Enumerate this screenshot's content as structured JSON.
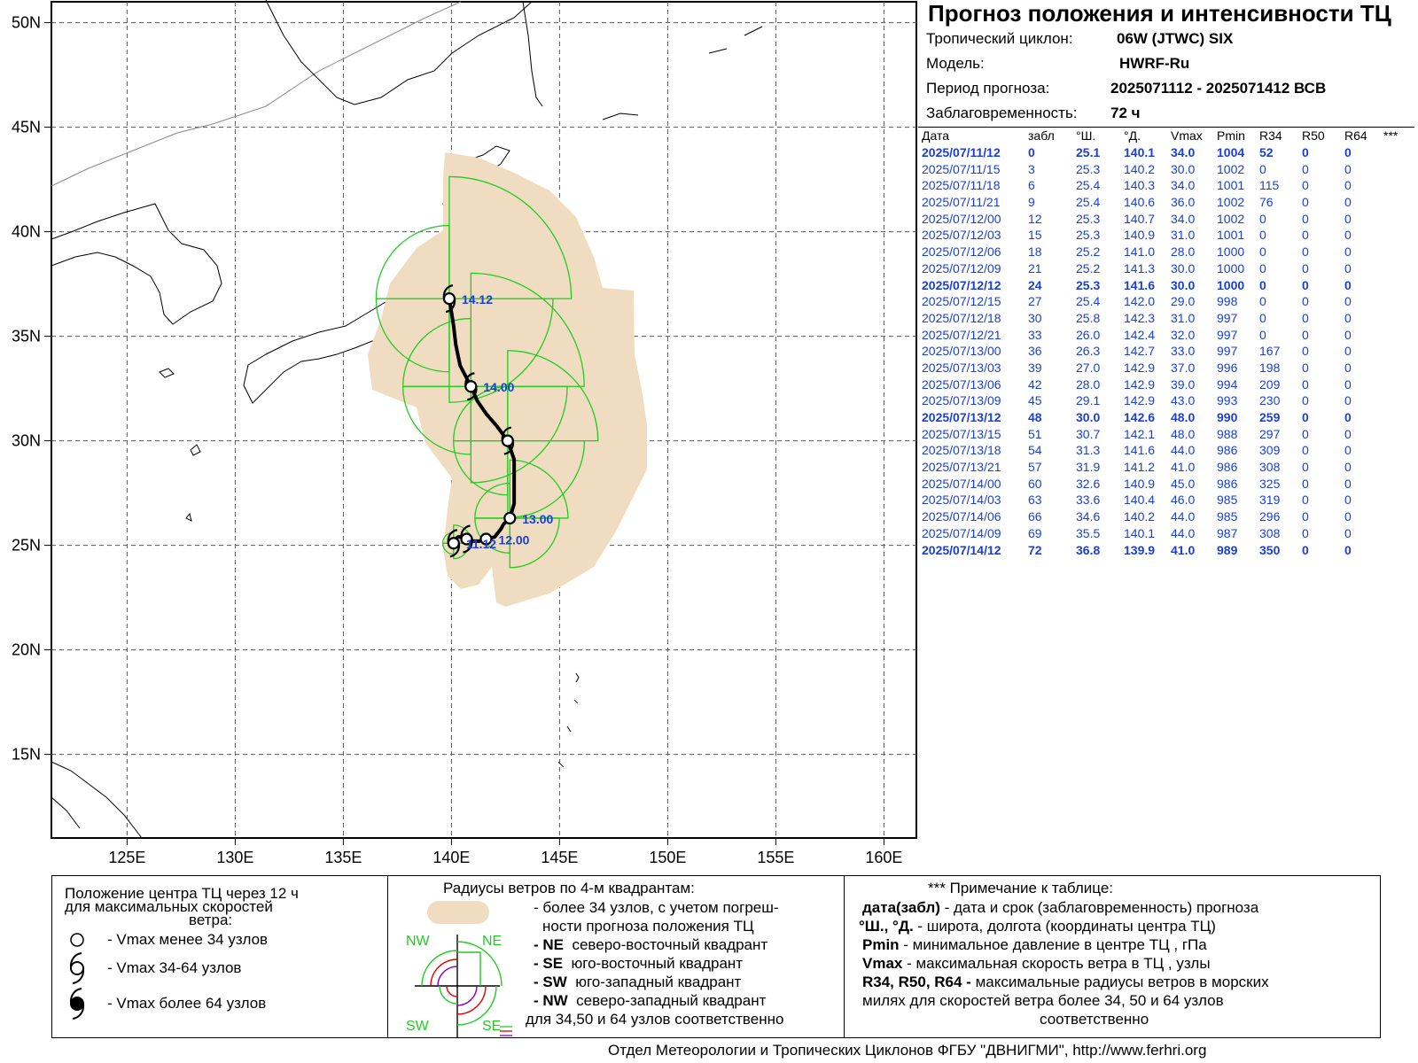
{
  "header": {
    "title": "Прогноз положения и интенсивности ТЦ",
    "cyclone_label": "Тропический циклон:",
    "cyclone_value": "06W (JTWC)  SIX",
    "model_label": "Модель:",
    "model_value": "HWRF-Ru",
    "period_label": "Период прогноза:",
    "period_value": "2025071112 - 2025071412 ВСВ",
    "lead_label": "Заблаговременность:",
    "lead_value": "72 ч"
  },
  "table": {
    "columns": [
      "Дата",
      "забл",
      "°Ш.",
      "°Д.",
      "Vmax",
      "Pmin",
      "R34",
      "R50",
      "R64",
      "***"
    ],
    "rows": [
      {
        "date": "2025/07/11/12",
        "lead": "0",
        "lat": "25.1",
        "lon": "140.1",
        "vmax": "34.0",
        "pmin": "1004",
        "r34": "52",
        "r50": "0",
        "r64": "0",
        "bold": true
      },
      {
        "date": "2025/07/11/15",
        "lead": "3",
        "lat": "25.3",
        "lon": "140.2",
        "vmax": "30.0",
        "pmin": "1002",
        "r34": "0",
        "r50": "0",
        "r64": "0",
        "bold": false
      },
      {
        "date": "2025/07/11/18",
        "lead": "6",
        "lat": "25.4",
        "lon": "140.3",
        "vmax": "34.0",
        "pmin": "1001",
        "r34": "115",
        "r50": "0",
        "r64": "0",
        "bold": false
      },
      {
        "date": "2025/07/11/21",
        "lead": "9",
        "lat": "25.4",
        "lon": "140.6",
        "vmax": "36.0",
        "pmin": "1002",
        "r34": "76",
        "r50": "0",
        "r64": "0",
        "bold": false
      },
      {
        "date": "2025/07/12/00",
        "lead": "12",
        "lat": "25.3",
        "lon": "140.7",
        "vmax": "34.0",
        "pmin": "1002",
        "r34": "0",
        "r50": "0",
        "r64": "0",
        "bold": false
      },
      {
        "date": "2025/07/12/03",
        "lead": "15",
        "lat": "25.3",
        "lon": "140.9",
        "vmax": "31.0",
        "pmin": "1001",
        "r34": "0",
        "r50": "0",
        "r64": "0",
        "bold": false
      },
      {
        "date": "2025/07/12/06",
        "lead": "18",
        "lat": "25.2",
        "lon": "141.0",
        "vmax": "28.0",
        "pmin": "1000",
        "r34": "0",
        "r50": "0",
        "r64": "0",
        "bold": false
      },
      {
        "date": "2025/07/12/09",
        "lead": "21",
        "lat": "25.2",
        "lon": "141.3",
        "vmax": "30.0",
        "pmin": "1000",
        "r34": "0",
        "r50": "0",
        "r64": "0",
        "bold": false
      },
      {
        "date": "2025/07/12/12",
        "lead": "24",
        "lat": "25.3",
        "lon": "141.6",
        "vmax": "30.0",
        "pmin": "1000",
        "r34": "0",
        "r50": "0",
        "r64": "0",
        "bold": true
      },
      {
        "date": "2025/07/12/15",
        "lead": "27",
        "lat": "25.4",
        "lon": "142.0",
        "vmax": "29.0",
        "pmin": "998",
        "r34": "0",
        "r50": "0",
        "r64": "0",
        "bold": false
      },
      {
        "date": "2025/07/12/18",
        "lead": "30",
        "lat": "25.8",
        "lon": "142.3",
        "vmax": "31.0",
        "pmin": "997",
        "r34": "0",
        "r50": "0",
        "r64": "0",
        "bold": false
      },
      {
        "date": "2025/07/12/21",
        "lead": "33",
        "lat": "26.0",
        "lon": "142.4",
        "vmax": "32.0",
        "pmin": "997",
        "r34": "0",
        "r50": "0",
        "r64": "0",
        "bold": false
      },
      {
        "date": "2025/07/13/00",
        "lead": "36",
        "lat": "26.3",
        "lon": "142.7",
        "vmax": "33.0",
        "pmin": "997",
        "r34": "167",
        "r50": "0",
        "r64": "0",
        "bold": false
      },
      {
        "date": "2025/07/13/03",
        "lead": "39",
        "lat": "27.0",
        "lon": "142.9",
        "vmax": "37.0",
        "pmin": "996",
        "r34": "198",
        "r50": "0",
        "r64": "0",
        "bold": false
      },
      {
        "date": "2025/07/13/06",
        "lead": "42",
        "lat": "28.0",
        "lon": "142.9",
        "vmax": "39.0",
        "pmin": "994",
        "r34": "209",
        "r50": "0",
        "r64": "0",
        "bold": false
      },
      {
        "date": "2025/07/13/09",
        "lead": "45",
        "lat": "29.1",
        "lon": "142.9",
        "vmax": "43.0",
        "pmin": "993",
        "r34": "230",
        "r50": "0",
        "r64": "0",
        "bold": false
      },
      {
        "date": "2025/07/13/12",
        "lead": "48",
        "lat": "30.0",
        "lon": "142.6",
        "vmax": "48.0",
        "pmin": "990",
        "r34": "259",
        "r50": "0",
        "r64": "0",
        "bold": true
      },
      {
        "date": "2025/07/13/15",
        "lead": "51",
        "lat": "30.7",
        "lon": "142.1",
        "vmax": "48.0",
        "pmin": "988",
        "r34": "297",
        "r50": "0",
        "r64": "0",
        "bold": false
      },
      {
        "date": "2025/07/13/18",
        "lead": "54",
        "lat": "31.3",
        "lon": "141.6",
        "vmax": "44.0",
        "pmin": "986",
        "r34": "309",
        "r50": "0",
        "r64": "0",
        "bold": false
      },
      {
        "date": "2025/07/13/21",
        "lead": "57",
        "lat": "31.9",
        "lon": "141.2",
        "vmax": "41.0",
        "pmin": "986",
        "r34": "308",
        "r50": "0",
        "r64": "0",
        "bold": false
      },
      {
        "date": "2025/07/14/00",
        "lead": "60",
        "lat": "32.6",
        "lon": "140.9",
        "vmax": "45.0",
        "pmin": "986",
        "r34": "325",
        "r50": "0",
        "r64": "0",
        "bold": false
      },
      {
        "date": "2025/07/14/03",
        "lead": "63",
        "lat": "33.6",
        "lon": "140.4",
        "vmax": "46.0",
        "pmin": "985",
        "r34": "319",
        "r50": "0",
        "r64": "0",
        "bold": false
      },
      {
        "date": "2025/07/14/06",
        "lead": "66",
        "lat": "34.6",
        "lon": "140.2",
        "vmax": "44.0",
        "pmin": "985",
        "r34": "296",
        "r50": "0",
        "r64": "0",
        "bold": false
      },
      {
        "date": "2025/07/14/09",
        "lead": "69",
        "lat": "35.5",
        "lon": "140.1",
        "vmax": "44.0",
        "pmin": "987",
        "r34": "308",
        "r50": "0",
        "r64": "0",
        "bold": false
      },
      {
        "date": "2025/07/14/12",
        "lead": "72",
        "lat": "36.8",
        "lon": "139.9",
        "vmax": "41.0",
        "pmin": "989",
        "r34": "350",
        "r50": "0",
        "r64": "0",
        "bold": true
      }
    ]
  },
  "map": {
    "lon_range": [
      121.5,
      161.5
    ],
    "lat_range": [
      11,
      51
    ],
    "lon_ticks": [
      {
        "v": 125,
        "label": "125E"
      },
      {
        "v": 130,
        "label": "130E"
      },
      {
        "v": 135,
        "label": "135E"
      },
      {
        "v": 140,
        "label": "140E"
      },
      {
        "v": 145,
        "label": "145E"
      },
      {
        "v": 150,
        "label": "150E"
      },
      {
        "v": 155,
        "label": "155E"
      },
      {
        "v": 160,
        "label": "160E"
      }
    ],
    "lat_ticks": [
      {
        "v": 50,
        "label": "50N"
      },
      {
        "v": 45,
        "label": "45N"
      },
      {
        "v": 40,
        "label": "40N"
      },
      {
        "v": 35,
        "label": "35N"
      },
      {
        "v": 30,
        "label": "30N"
      },
      {
        "v": 25,
        "label": "25N"
      },
      {
        "v": 20,
        "label": "20N"
      },
      {
        "v": 15,
        "label": "15N"
      }
    ],
    "point_labels": [
      {
        "lat": 25.1,
        "lon": 140.1,
        "text": "11.12"
      },
      {
        "lat": 25.3,
        "lon": 141.6,
        "text": "12.00"
      },
      {
        "lat": 26.3,
        "lon": 142.7,
        "text": "13.00"
      },
      {
        "lat": 32.6,
        "lon": 140.9,
        "text": "14.00"
      },
      {
        "lat": 36.8,
        "lon": 139.9,
        "text": "14.12"
      }
    ],
    "colors": {
      "uncertainty": "#f0dcc0",
      "r34": "#22cc22",
      "track": "#000000",
      "label": "#1a3fd6"
    }
  },
  "legend": {
    "p1_title1": "Положение центра ТЦ через 12 ч",
    "p1_title2": "для максимальных скоростей",
    "p1_title3": "ветра:",
    "p1_item1": "- Vmax   менее 34 узлов",
    "p1_item2": "- Vmax   34-64 узлов",
    "p1_item3": "- Vmax   более 64 узлов",
    "p2_title": "Радиусы ветров по 4-м квадрантам:",
    "p2_line1": "- более 34 узлов, с учетом погреш-",
    "p2_line2": "ности прогноза положения ТЦ",
    "ne_code": "- NE",
    "ne_text": "северо-восточный квадрант",
    "se_code": "- SE",
    "se_text": "юго-восточный квадрант",
    "sw_code": "- SW",
    "sw_text": "юго-западный квадрант",
    "nw_code": "- NW",
    "nw_text": "северо-западный квадрант",
    "p2_last": "для 34,50 и 64 узлов соответственно",
    "q_nw": "NW",
    "q_ne": "NE",
    "q_sw": "SW",
    "q_se": "SE",
    "p3_title": "*** Примечание к таблице:",
    "n1_key": "дата(забл)",
    "n1_text": " - дата и срок (заблаговременность) прогноза",
    "n2_key": "°Ш., °Д.",
    "n2_text": " - широта, долгота   (координаты центра ТЦ)",
    "n3_key": "Pmin",
    "n3_text": "  - минимальное давление в центре ТЦ , гПа",
    "n4_key": "Vmax",
    "n4_text": "   -  максимальная скорость ветра в ТЦ , узлы",
    "n5_key": "R34, R50, R64 -",
    "n5_text": " максимальные радиусы ветров в морских",
    "n5_line2": "милях для скоростей ветра более 34, 50 и 64 узлов",
    "n5_line3": "соответственно"
  },
  "footer": "Отдел Метеорологии и Тропических Циклонов ФГБУ \"ДВНИГМИ\",  http://www.ferhri.org"
}
